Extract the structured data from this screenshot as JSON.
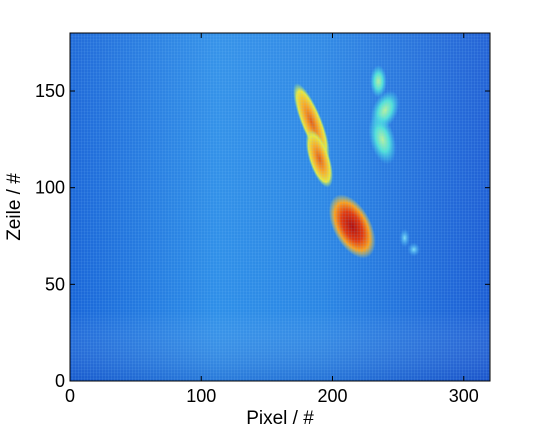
{
  "chart_data": {
    "type": "heatmap",
    "title": "",
    "xlabel": "Pixel / #",
    "ylabel": "Zeile / #",
    "xlim": [
      0,
      320
    ],
    "ylim": [
      0,
      180
    ],
    "xticks": [
      0,
      100,
      200,
      300
    ],
    "yticks": [
      0,
      50,
      100,
      150
    ],
    "x_tick_labels": [
      "0",
      "100",
      "200",
      "300"
    ],
    "y_tick_labels": [
      "0",
      "50",
      "100",
      "150"
    ],
    "grid": false,
    "colormap": "jet",
    "background_level": 0.3,
    "hotspots": [
      {
        "x": 184,
        "y": 134,
        "level": 0.68
      },
      {
        "x": 190,
        "y": 115,
        "level": 0.62
      },
      {
        "x": 215,
        "y": 80,
        "level": 0.95
      },
      {
        "x": 235,
        "y": 155,
        "level": 0.45
      },
      {
        "x": 240,
        "y": 140,
        "level": 0.45
      },
      {
        "x": 238,
        "y": 125,
        "level": 0.42
      },
      {
        "x": 262,
        "y": 68,
        "level": 0.38
      },
      {
        "x": 255,
        "y": 74,
        "level": 0.35
      }
    ]
  }
}
